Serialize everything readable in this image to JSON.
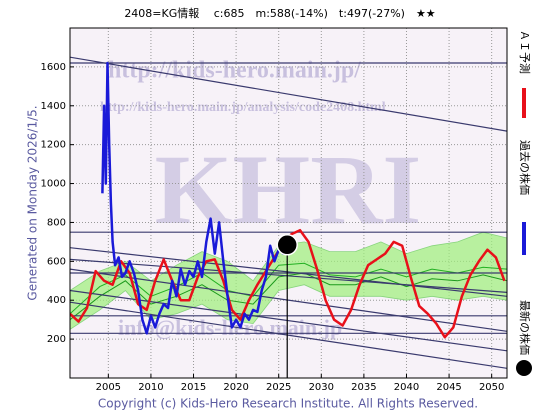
{
  "chart_data": {
    "type": "line",
    "title": "2408=KG情報　 c:685　m:588(-14%)　t:497(-27%)　★★",
    "side_note": "Generated on Monday 2026/1/5.",
    "footer": "Copyright (c) Kids-Hero Research Institute. All Rights Reserved.",
    "watermarks": [
      "http://kids-hero.main.jp/",
      "http://kids-hero.main.jp/analysis/code2408.html",
      "KHRI",
      "info@kids-hero.main.jp"
    ],
    "legend": [
      {
        "name": "ＡＩ予測",
        "color": "#e8101a"
      },
      {
        "name": "過去の株価",
        "color": "#1a1ad8"
      },
      {
        "name": "最新の株価",
        "color": "#000000"
      }
    ],
    "xlim": [
      2000.5,
      2051.8
    ],
    "ylim": [
      0,
      1800
    ],
    "xticks": [
      2005,
      2010,
      2015,
      2020,
      2025,
      2030,
      2035,
      2040,
      2045,
      2050
    ],
    "yticks": [
      200,
      400,
      600,
      800,
      1000,
      1200,
      1400,
      1600
    ],
    "grid": true,
    "band": {
      "color": "#9ef07a",
      "x": [
        2000.5,
        2004,
        2007,
        2010,
        2013,
        2016,
        2019,
        2022,
        2025,
        2028,
        2031,
        2034,
        2037,
        2040,
        2043,
        2046,
        2049,
        2051.8
      ],
      "low": [
        250,
        350,
        450,
        300,
        330,
        380,
        300,
        280,
        450,
        480,
        420,
        420,
        420,
        400,
        420,
        400,
        420,
        400
      ],
      "high": [
        450,
        550,
        600,
        500,
        580,
        650,
        600,
        500,
        680,
        700,
        650,
        650,
        700,
        640,
        680,
        700,
        750,
        720
      ]
    },
    "green_lines": [
      {
        "color": "#22b022",
        "values": [
          330,
          470,
          530,
          420,
          470,
          540,
          450,
          420,
          580,
          590,
          530,
          520,
          560,
          520,
          560,
          540,
          570,
          560
        ]
      },
      {
        "color": "#1c9a1c",
        "values": [
          300,
          420,
          500,
          380,
          420,
          480,
          400,
          380,
          520,
          540,
          480,
          480,
          520,
          470,
          510,
          500,
          530,
          500
        ]
      }
    ],
    "trend_lines": [
      {
        "x": [
          2000.5,
          2051.8
        ],
        "values": [
          1650,
          1270
        ]
      },
      {
        "x": [
          2000.5,
          2051.8
        ],
        "values": [
          1620,
          1620
        ]
      },
      {
        "x": [
          2000.5,
          2051.8
        ],
        "values": [
          750,
          750
        ]
      },
      {
        "x": [
          2000.5,
          2051.8
        ],
        "values": [
          540,
          540
        ]
      },
      {
        "x": [
          2000.5,
          2051.8
        ],
        "values": [
          320,
          320
        ]
      },
      {
        "x": [
          2000.5,
          2051.8
        ],
        "values": [
          230,
          230
        ]
      },
      {
        "x": [
          2000.5,
          2051.8
        ],
        "values": [
          670,
          420
        ]
      },
      {
        "x": [
          2000.5,
          2051.8
        ],
        "values": [
          610,
          440
        ]
      },
      {
        "x": [
          2000.5,
          2051.8
        ],
        "values": [
          560,
          240
        ]
      },
      {
        "x": [
          2000.5,
          2051.8
        ],
        "values": [
          450,
          140
        ]
      },
      {
        "x": [
          2000.5,
          2051.8
        ],
        "values": [
          390,
          50
        ]
      }
    ],
    "series": [
      {
        "name": "ＡＩ予測",
        "color": "#e8101a",
        "x": [
          2000.5,
          2001.5,
          2002.5,
          2003.5,
          2004.5,
          2005.5,
          2006.5,
          2007.5,
          2008.5,
          2009.5,
          2010.5,
          2011.5,
          2012.5,
          2013.5,
          2014.5,
          2015.5,
          2016.5,
          2017.5,
          2018.5,
          2019.5,
          2020.5,
          2021.5,
          2022.5,
          2023.5,
          2024.5,
          2025.5,
          2026.5,
          2027.5,
          2028.5,
          2029.5,
          2030.5,
          2031.5,
          2032.5,
          2033.5,
          2034.5,
          2035.5,
          2036.5,
          2037.5,
          2038.5,
          2039.5,
          2040.5,
          2041.5,
          2042.5,
          2043.5,
          2044.5,
          2045.5,
          2046.5,
          2047.5,
          2048.5,
          2049.5,
          2050.5,
          2051.5
        ],
        "values": [
          330,
          290,
          360,
          550,
          500,
          480,
          600,
          540,
          380,
          350,
          500,
          610,
          500,
          400,
          400,
          520,
          600,
          610,
          500,
          350,
          300,
          400,
          480,
          550,
          620,
          690,
          740,
          760,
          700,
          560,
          400,
          300,
          270,
          350,
          480,
          580,
          610,
          640,
          700,
          680,
          520,
          370,
          330,
          280,
          210,
          260,
          420,
          530,
          600,
          660,
          620,
          500
        ]
      },
      {
        "name": "過去の株価",
        "color": "#1a1ad8",
        "x": [
          2004.3,
          2004.5,
          2004.7,
          2004.9,
          2005.1,
          2005.3,
          2005.5,
          2005.8,
          2006.2,
          2006.6,
          2007,
          2007.5,
          2008,
          2008.5,
          2009,
          2009.5,
          2010,
          2010.5,
          2011,
          2011.5,
          2012,
          2012.5,
          2013,
          2013.5,
          2014,
          2014.5,
          2015,
          2015.5,
          2016,
          2016.5,
          2017,
          2017.5,
          2018,
          2018.5,
          2019,
          2019.5,
          2020,
          2020.5,
          2021,
          2021.5,
          2022,
          2022.5,
          2023,
          2023.5,
          2024,
          2024.5,
          2025,
          2025.5,
          2026
        ],
        "values": [
          950,
          1400,
          1000,
          1620,
          1200,
          900,
          700,
          580,
          620,
          520,
          540,
          600,
          540,
          450,
          300,
          230,
          320,
          260,
          330,
          380,
          360,
          500,
          420,
          560,
          480,
          550,
          520,
          600,
          520,
          700,
          820,
          640,
          800,
          600,
          420,
          260,
          300,
          260,
          330,
          300,
          350,
          340,
          450,
          520,
          680,
          600,
          660,
          640,
          685
        ]
      }
    ],
    "latest": {
      "name": "最新の株価",
      "x": 2026,
      "value": 685
    }
  }
}
